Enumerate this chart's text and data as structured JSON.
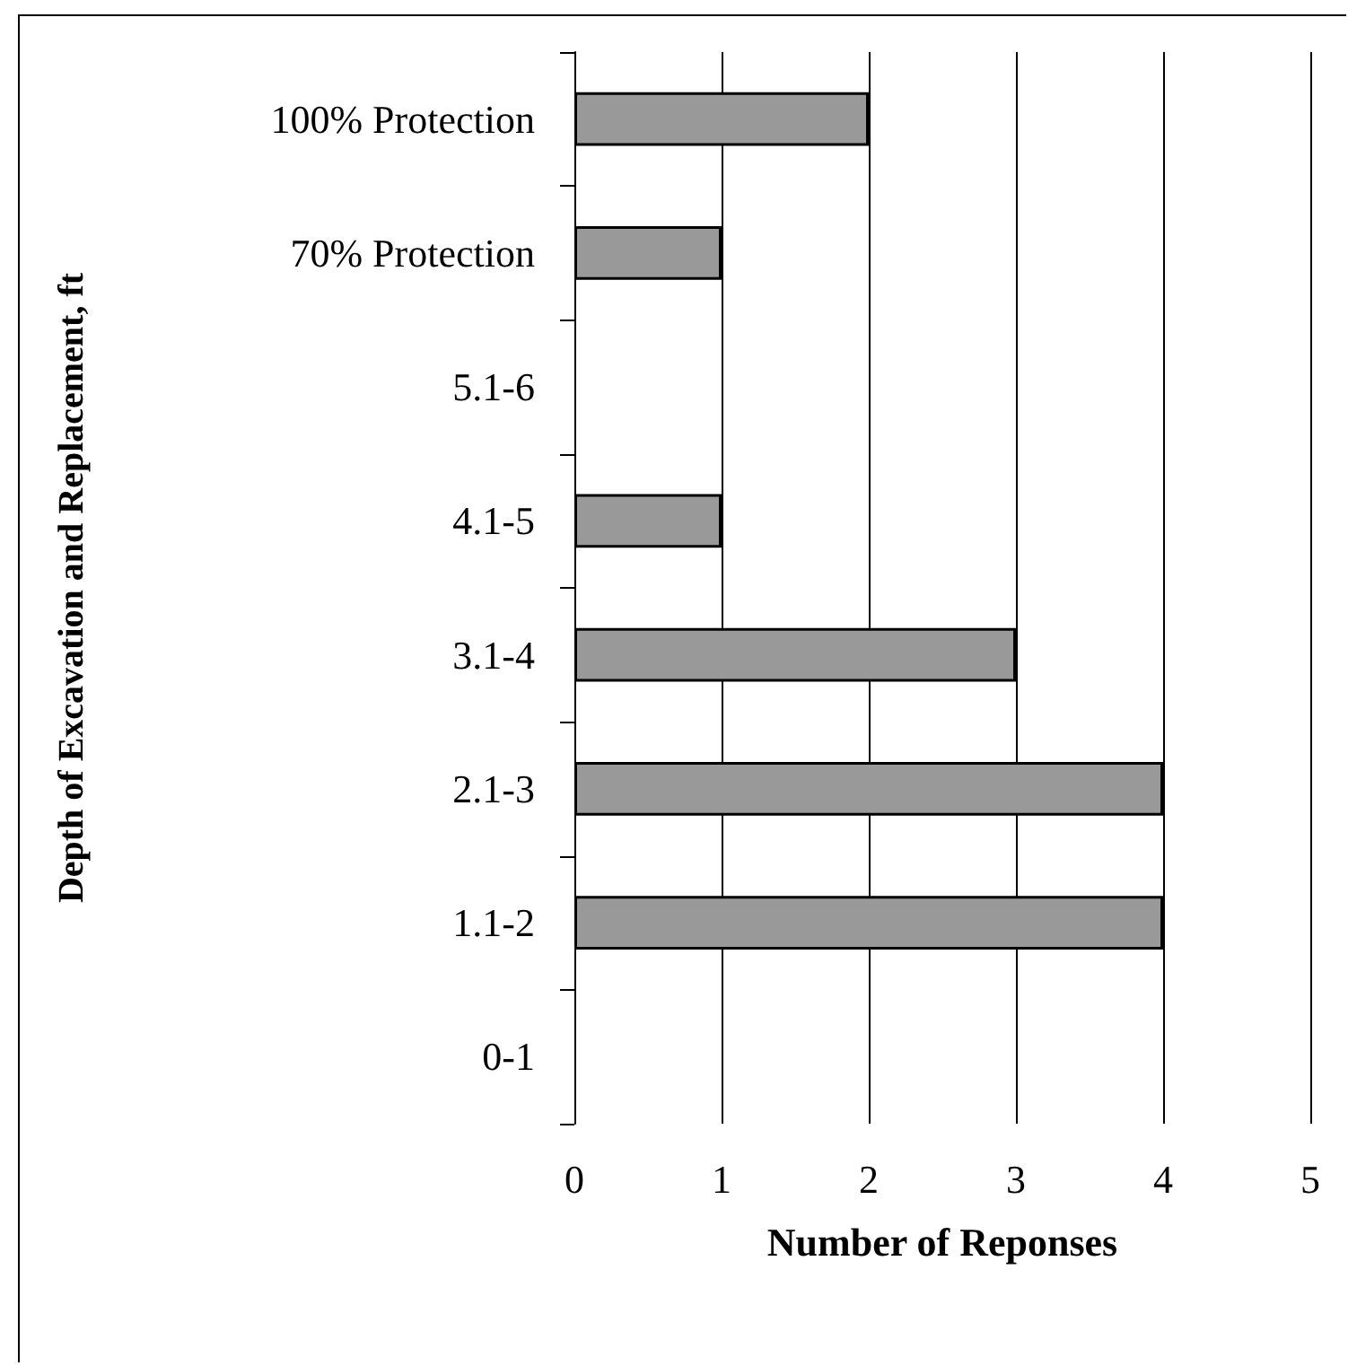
{
  "chart_data": {
    "type": "bar",
    "orientation": "horizontal",
    "xlabel": "Number of Reponses",
    "ylabel": "Depth of Excavation and Replacement, ft",
    "categories": [
      "100% Protection",
      "70% Protection",
      "5.1-6",
      "4.1-5",
      "3.1-4",
      "2.1-3",
      "1.1-2",
      "0-1"
    ],
    "values": [
      2,
      1,
      0,
      1,
      3,
      4,
      4,
      0
    ],
    "color": "#999999",
    "xlim": [
      0,
      5
    ],
    "xticks": [
      0,
      1,
      2,
      3,
      4,
      5
    ],
    "grid": "x"
  }
}
